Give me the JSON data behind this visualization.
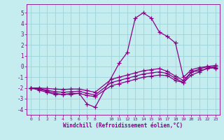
{
  "xlabel": "Windchill (Refroidissement éolien,°C)",
  "xlim": [
    -0.5,
    23.5
  ],
  "ylim": [
    -4.5,
    5.8
  ],
  "yticks": [
    -4,
    -3,
    -2,
    -1,
    0,
    1,
    2,
    3,
    4,
    5
  ],
  "xticks": [
    0,
    1,
    2,
    3,
    4,
    5,
    6,
    7,
    8,
    10,
    11,
    12,
    13,
    14,
    15,
    16,
    17,
    18,
    19,
    20,
    21,
    22,
    23
  ],
  "background_color": "#c5ecee",
  "grid_color": "#9ed4d8",
  "line_color": "#880088",
  "line_width": 0.9,
  "marker": "+",
  "marker_size": 4,
  "marker_edge_width": 0.9,
  "curves": [
    {
      "x": [
        0,
        1,
        2,
        3,
        4,
        5,
        6,
        7,
        8,
        11,
        12,
        13,
        14,
        15,
        16,
        17,
        18,
        19,
        20,
        21,
        22,
        23
      ],
      "y": [
        -2.0,
        -2.2,
        -2.4,
        -2.6,
        -2.6,
        -2.6,
        -2.5,
        -3.5,
        -3.8,
        0.3,
        1.3,
        4.5,
        5.0,
        4.5,
        3.2,
        2.8,
        2.2,
        -1.0,
        -0.3,
        -0.1,
        0.0,
        -0.2
      ]
    },
    {
      "x": [
        0,
        1,
        2,
        3,
        4,
        5,
        6,
        7,
        8,
        10,
        11,
        12,
        13,
        14,
        15,
        16,
        17,
        18,
        19,
        20,
        21,
        22,
        23
      ],
      "y": [
        -2.0,
        -2.1,
        -2.3,
        -2.5,
        -2.6,
        -2.5,
        -2.5,
        -2.7,
        -2.8,
        -1.8,
        -1.6,
        -1.4,
        -1.2,
        -1.0,
        -0.9,
        -0.8,
        -0.85,
        -1.3,
        -1.5,
        -0.5,
        -0.4,
        -0.2,
        -0.1
      ]
    },
    {
      "x": [
        0,
        1,
        2,
        3,
        4,
        5,
        6,
        7,
        8,
        10,
        11,
        12,
        13,
        14,
        15,
        16,
        17,
        18,
        19,
        20,
        21,
        22,
        23
      ],
      "y": [
        -2.0,
        -2.05,
        -2.2,
        -2.35,
        -2.4,
        -2.35,
        -2.3,
        -2.5,
        -2.65,
        -1.5,
        -1.3,
        -1.1,
        -0.9,
        -0.7,
        -0.6,
        -0.5,
        -0.65,
        -1.1,
        -1.5,
        -0.8,
        -0.5,
        -0.15,
        0.0
      ]
    },
    {
      "x": [
        0,
        1,
        2,
        3,
        4,
        5,
        6,
        7,
        8,
        10,
        11,
        12,
        13,
        14,
        15,
        16,
        17,
        18,
        19,
        20,
        21,
        22,
        23
      ],
      "y": [
        -2.0,
        -2.0,
        -2.05,
        -2.1,
        -2.15,
        -2.1,
        -2.1,
        -2.25,
        -2.4,
        -1.2,
        -1.0,
        -0.8,
        -0.6,
        -0.4,
        -0.3,
        -0.2,
        -0.45,
        -0.9,
        -1.3,
        -0.5,
        -0.25,
        0.0,
        0.1
      ]
    }
  ]
}
